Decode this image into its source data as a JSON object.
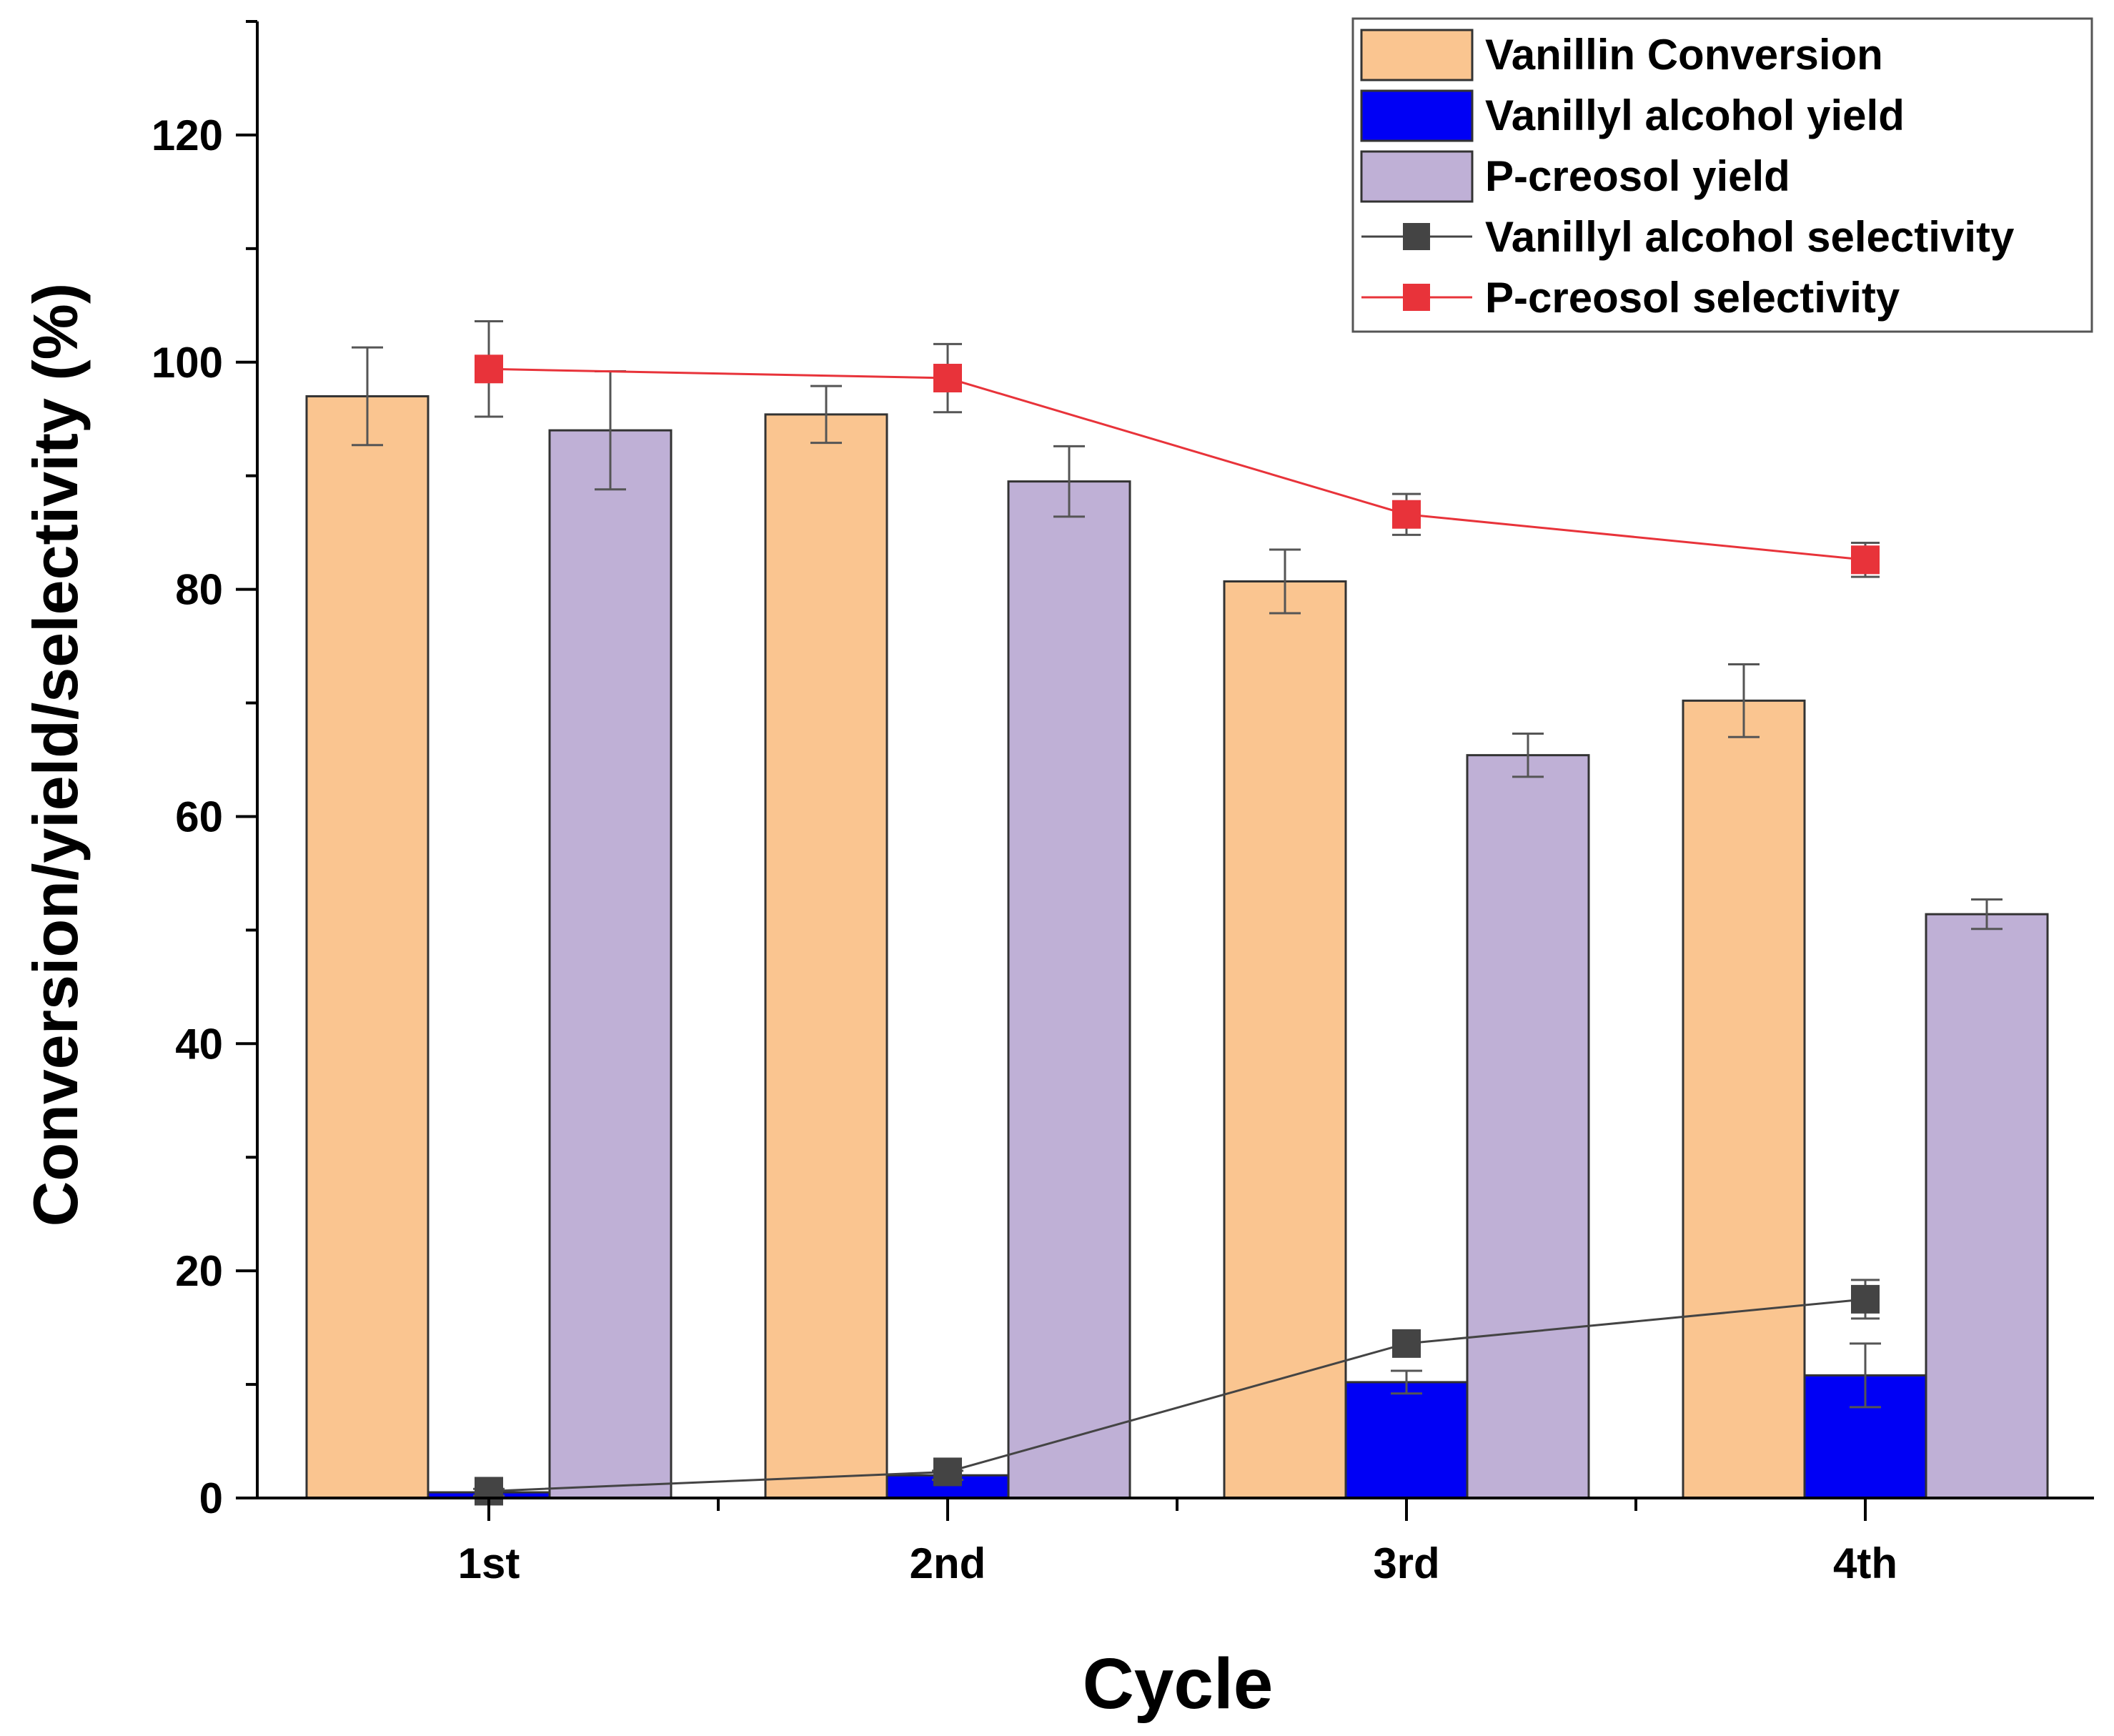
{
  "chart_data": {
    "type": "bar",
    "xlabel": "Cycle",
    "ylabel": "Conversion/yield/selectivity (%)",
    "ylim": [
      0,
      130
    ],
    "yticks": [
      0,
      20,
      40,
      60,
      80,
      100,
      120
    ],
    "ytick_labels": [
      "0",
      "20",
      "40",
      "60",
      "80",
      "100",
      "120"
    ],
    "categories": [
      "1st",
      "2nd",
      "3rd",
      "4th"
    ],
    "legend_position": "top-right",
    "bar_series": [
      {
        "name": "Vanillin Conversion",
        "color": "#fac590",
        "values": [
          97.0,
          95.4,
          80.7,
          70.2
        ],
        "errors": [
          4.3,
          2.5,
          2.8,
          3.2
        ]
      },
      {
        "name": "Vanillyl alcohol yield",
        "color": "#0000f5",
        "values": [
          0.5,
          2.0,
          10.2,
          10.8
        ],
        "errors": [
          0.3,
          0.4,
          1.0,
          2.8
        ]
      },
      {
        "name": "P-creosol yield",
        "color": "#bfb0d6",
        "values": [
          94.0,
          89.5,
          65.4,
          51.4
        ],
        "errors": [
          5.2,
          3.1,
          1.9,
          1.3
        ]
      }
    ],
    "line_series": [
      {
        "name": "Vanillyl alcohol selectivity",
        "color": "#444444",
        "values": [
          0.6,
          2.3,
          13.6,
          17.5
        ],
        "errors": [
          0.3,
          0.3,
          0.5,
          1.7
        ]
      },
      {
        "name": "P-creosol selectivity",
        "color": "#e8333a",
        "values": [
          99.4,
          98.6,
          86.6,
          82.6
        ],
        "errors": [
          4.2,
          3.0,
          1.8,
          1.5
        ]
      }
    ]
  }
}
